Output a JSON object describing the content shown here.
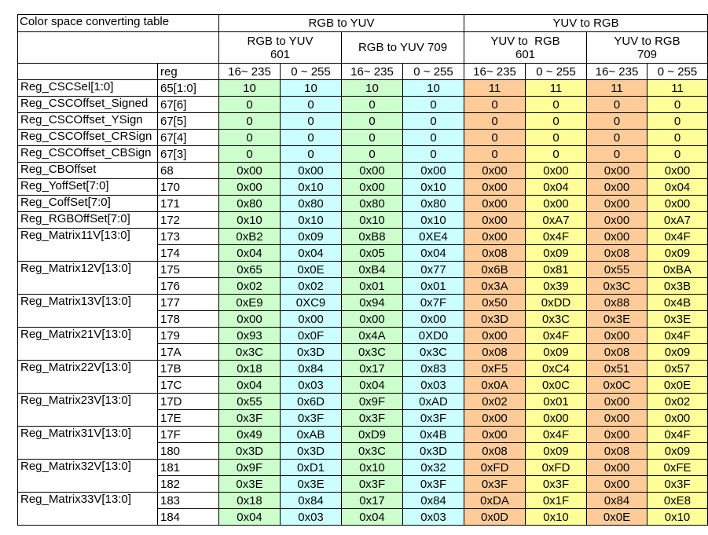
{
  "title": "Color space converting table",
  "header": {
    "reg_label": "reg",
    "groups": [
      {
        "label": "RGB to YUV",
        "subs": [
          [
            "RGB to YUV",
            "601"
          ],
          [
            "RGB to YUV 709",
            ""
          ]
        ]
      },
      {
        "label": "YUV to RGB",
        "subs": [
          [
            "YUV to  RGB",
            "601"
          ],
          [
            "YUV to RGB",
            "709"
          ]
        ]
      }
    ],
    "ranges": [
      "16~ 235",
      "0 ~ 255",
      "16~ 235",
      "0 ~ 255",
      "16~ 235",
      "0 ~ 255",
      "16~ 235",
      "0 ~ 255"
    ]
  },
  "colors": {
    "green": "#ccffcc",
    "cyan": "#ccffff",
    "orange": "#ffcc99",
    "yellow": "#ffff99",
    "border": "#000000",
    "text": "#000000"
  },
  "column_fills": [
    "green",
    "cyan",
    "green",
    "cyan",
    "orange",
    "yellow",
    "orange",
    "yellow"
  ],
  "rows": [
    {
      "label": "Reg_CSCSel[1:0]",
      "regs": [
        {
          "reg": "65[1:0]",
          "values": [
            "10",
            "10",
            "10",
            "10",
            "11",
            "11",
            "11",
            "11"
          ]
        }
      ]
    },
    {
      "label": "Reg_CSCOffset_Signed",
      "regs": [
        {
          "reg": "67[6]",
          "values": [
            "0",
            "0",
            "0",
            "0",
            "0",
            "0",
            "0",
            "0"
          ]
        }
      ]
    },
    {
      "label": "Reg_CSCOffset_YSign",
      "regs": [
        {
          "reg": "67[5]",
          "values": [
            "0",
            "0",
            "0",
            "0",
            "0",
            "0",
            "0",
            "0"
          ]
        }
      ]
    },
    {
      "label": "Reg_CSCOffset_CRSign",
      "regs": [
        {
          "reg": "67[4]",
          "values": [
            "0",
            "0",
            "0",
            "0",
            "0",
            "0",
            "0",
            "0"
          ]
        }
      ]
    },
    {
      "label": "Reg_CSCOffset_CBSign",
      "regs": [
        {
          "reg": "67[3]",
          "values": [
            "0",
            "0",
            "0",
            "0",
            "0",
            "0",
            "0",
            "0"
          ]
        }
      ]
    },
    {
      "label": "Reg_CBOffset",
      "regs": [
        {
          "reg": "68",
          "values": [
            "0x00",
            "0x00",
            "0x00",
            "0x00",
            "0x00",
            "0x00",
            "0x00",
            "0x00"
          ]
        }
      ]
    },
    {
      "label": "Reg_YoffSet[7:0]",
      "regs": [
        {
          "reg": "170",
          "values": [
            "0x00",
            "0x10",
            "0x00",
            "0x10",
            "0x00",
            "0x04",
            "0x00",
            "0x04"
          ]
        }
      ]
    },
    {
      "label": "Reg_CoffSet[7:0]",
      "regs": [
        {
          "reg": "171",
          "values": [
            "0x80",
            "0x80",
            "0x80",
            "0x80",
            "0x00",
            "0x00",
            "0x00",
            "0x00"
          ]
        }
      ]
    },
    {
      "label": "Reg_RGBOffSet[7:0]",
      "regs": [
        {
          "reg": "172",
          "values": [
            "0x10",
            "0x10",
            "0x10",
            "0x10",
            "0x00",
            "0xA7",
            "0x00",
            "0xA7"
          ]
        }
      ]
    },
    {
      "label": "Reg_Matrix11V[13:0]",
      "regs": [
        {
          "reg": "173",
          "values": [
            "0xB2",
            "0x09",
            "0xB8",
            "0XE4",
            "0x00",
            "0x4F",
            "0x00",
            "0x4F"
          ]
        },
        {
          "reg": "174",
          "values": [
            "0x04",
            "0x04",
            "0x05",
            "0x04",
            "0x08",
            "0x09",
            "0x08",
            "0x09"
          ]
        }
      ]
    },
    {
      "label": "Reg_Matrix12V[13:0]",
      "regs": [
        {
          "reg": "175",
          "values": [
            "0x65",
            "0x0E",
            "0xB4",
            "0x77",
            "0x6B",
            "0x81",
            "0x55",
            "0xBA"
          ]
        },
        {
          "reg": "176",
          "values": [
            "0x02",
            "0x02",
            "0x01",
            "0x01",
            "0x3A",
            "0x39",
            "0x3C",
            "0x3B"
          ]
        }
      ]
    },
    {
      "label": "Reg_Matrix13V[13:0]",
      "regs": [
        {
          "reg": "177",
          "values": [
            "0xE9",
            "0XC9",
            "0x94",
            "0x7F",
            "0x50",
            "0xDD",
            "0x88",
            "0x4B"
          ]
        },
        {
          "reg": "178",
          "values": [
            "0x00",
            "0x00",
            "0x00",
            "0x00",
            "0x3D",
            "0x3C",
            "0x3E",
            "0x3E"
          ]
        }
      ]
    },
    {
      "label": "Reg_Matrix21V[13:0]",
      "regs": [
        {
          "reg": "179",
          "values": [
            "0x93",
            "0x0F",
            "0x4A",
            "0XD0",
            "0x00",
            "0x4F",
            "0x00",
            "0x4F"
          ]
        },
        {
          "reg": "17A",
          "values": [
            "0x3C",
            "0x3D",
            "0x3C",
            "0x3C",
            "0x08",
            "0x09",
            "0x08",
            "0x09"
          ]
        }
      ]
    },
    {
      "label": "Reg_Matrix22V[13:0]",
      "regs": [
        {
          "reg": "17B",
          "values": [
            "0x18",
            "0x84",
            "0x17",
            "0x83",
            "0xF5",
            "0xC4",
            "0x51",
            "0x57"
          ]
        },
        {
          "reg": "17C",
          "values": [
            "0x04",
            "0x03",
            "0x04",
            "0x03",
            "0x0A",
            "0x0C",
            "0x0C",
            "0x0E"
          ]
        }
      ]
    },
    {
      "label": "Reg_Matrix23V[13:0]",
      "regs": [
        {
          "reg": "17D",
          "values": [
            "0x55",
            "0x6D",
            "0x9F",
            "0xAD",
            "0x02",
            "0x01",
            "0x00",
            "0x02"
          ]
        },
        {
          "reg": "17E",
          "values": [
            "0x3F",
            "0x3F",
            "0x3F",
            "0x3F",
            "0x00",
            "0x00",
            "0x00",
            "0x00"
          ]
        }
      ]
    },
    {
      "label": "Reg_Matrix31V[13:0]",
      "regs": [
        {
          "reg": "17F",
          "values": [
            "0x49",
            "0xAB",
            "0xD9",
            "0x4B",
            "0x00",
            "0x4F",
            "0x00",
            "0x4F"
          ]
        },
        {
          "reg": "180",
          "values": [
            "0x3D",
            "0x3D",
            "0x3C",
            "0x3D",
            "0x08",
            "0x09",
            "0x08",
            "0x09"
          ]
        }
      ]
    },
    {
      "label": "Reg_Matrix32V[13:0]",
      "regs": [
        {
          "reg": "181",
          "values": [
            "0x9F",
            "0xD1",
            "0x10",
            "0x32",
            "0xFD",
            "0xFD",
            "0x00",
            "0xFE"
          ]
        },
        {
          "reg": "182",
          "values": [
            "0x3E",
            "0x3E",
            "0x3F",
            "0x3F",
            "0x3F",
            "0x3F",
            "0x00",
            "0x3F"
          ]
        }
      ]
    },
    {
      "label": "Reg_Matrix33V[13:0]",
      "regs": [
        {
          "reg": "183",
          "values": [
            "0x18",
            "0x84",
            "0x17",
            "0x84",
            "0xDA",
            "0x1F",
            "0x84",
            "0xE8"
          ]
        },
        {
          "reg": "184",
          "values": [
            "0x04",
            "0x03",
            "0x04",
            "0x03",
            "0x0D",
            "0x10",
            "0x0E",
            "0x10"
          ]
        }
      ]
    }
  ]
}
